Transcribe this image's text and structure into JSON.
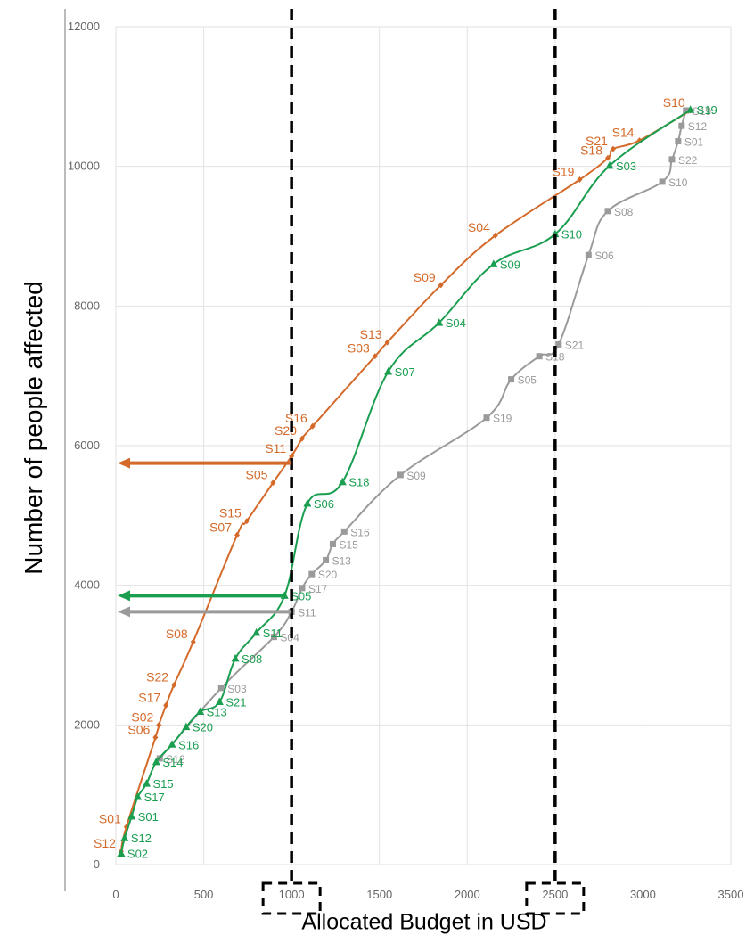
{
  "chart_data": {
    "type": "line",
    "xlabel": "Allocated Budget in USD",
    "ylabel": "Number of people affected",
    "xlim": [
      0,
      3500
    ],
    "ylim": [
      0,
      12000
    ],
    "xticks": [
      0,
      500,
      1000,
      1500,
      2000,
      2500,
      3000,
      3500
    ],
    "yticks": [
      0,
      2000,
      4000,
      6000,
      8000,
      10000,
      12000
    ],
    "grid": true,
    "colors": {
      "orange": "#d46a2a",
      "green": "#1a9e50",
      "gray": "#9a9a9a",
      "dashed": "#000000"
    },
    "series": [
      {
        "color": "orange",
        "marker": "diamond",
        "points": [
          {
            "x": 30,
            "y": 190,
            "label": "S12"
          },
          {
            "x": 60,
            "y": 540,
            "label": "S01"
          },
          {
            "x": 225,
            "y": 1820,
            "label": "S06"
          },
          {
            "x": 245,
            "y": 2000,
            "label": "S02"
          },
          {
            "x": 285,
            "y": 2280,
            "label": "S17"
          },
          {
            "x": 330,
            "y": 2570,
            "label": "S22"
          },
          {
            "x": 440,
            "y": 3190,
            "label": "S08"
          },
          {
            "x": 690,
            "y": 4720,
            "label": "S07"
          },
          {
            "x": 745,
            "y": 4920,
            "label": "S15"
          },
          {
            "x": 895,
            "y": 5470,
            "label": "S05"
          },
          {
            "x": 1000,
            "y": 5850,
            "label": "S11"
          },
          {
            "x": 1060,
            "y": 6100,
            "label": "S20"
          },
          {
            "x": 1120,
            "y": 6280,
            "label": "S16"
          },
          {
            "x": 1475,
            "y": 7280,
            "label": "S03"
          },
          {
            "x": 1545,
            "y": 7480,
            "label": "S13"
          },
          {
            "x": 1850,
            "y": 8300,
            "label": "S09"
          },
          {
            "x": 2160,
            "y": 9010,
            "label": "S04"
          },
          {
            "x": 2640,
            "y": 9810,
            "label": "S19"
          },
          {
            "x": 2800,
            "y": 10120,
            "label": "S18"
          },
          {
            "x": 2830,
            "y": 10250,
            "label": "S21"
          },
          {
            "x": 2980,
            "y": 10370,
            "label": "S14"
          },
          {
            "x": 3270,
            "y": 10800,
            "label": "S10"
          }
        ]
      },
      {
        "color": "green",
        "marker": "triangle",
        "points": [
          {
            "x": 30,
            "y": 160,
            "label": "S02"
          },
          {
            "x": 50,
            "y": 380,
            "label": "S12"
          },
          {
            "x": 90,
            "y": 690,
            "label": "S01"
          },
          {
            "x": 125,
            "y": 970,
            "label": "S17"
          },
          {
            "x": 175,
            "y": 1160,
            "label": "S15"
          },
          {
            "x": 230,
            "y": 1470,
            "label": "S14"
          },
          {
            "x": 320,
            "y": 1720,
            "label": "S16"
          },
          {
            "x": 400,
            "y": 1970,
            "label": "S20"
          },
          {
            "x": 480,
            "y": 2190,
            "label": "S13"
          },
          {
            "x": 590,
            "y": 2330,
            "label": "S21"
          },
          {
            "x": 680,
            "y": 2950,
            "label": "S08"
          },
          {
            "x": 800,
            "y": 3320,
            "label": "S11"
          },
          {
            "x": 960,
            "y": 3850,
            "label": "S05"
          },
          {
            "x": 1090,
            "y": 5170,
            "label": "S06"
          },
          {
            "x": 1290,
            "y": 5480,
            "label": "S18"
          },
          {
            "x": 1550,
            "y": 7060,
            "label": "S07"
          },
          {
            "x": 1840,
            "y": 7760,
            "label": "S04"
          },
          {
            "x": 2150,
            "y": 8600,
            "label": "S09"
          },
          {
            "x": 2500,
            "y": 9030,
            "label": "S10"
          },
          {
            "x": 2810,
            "y": 10010,
            "label": "S03"
          },
          {
            "x": 3270,
            "y": 10810,
            "label": "S19"
          }
        ]
      },
      {
        "color": "gray",
        "marker": "square",
        "points": [
          {
            "x": 250,
            "y": 1520,
            "label": "S12"
          },
          {
            "x": 600,
            "y": 2530,
            "label": "S03"
          },
          {
            "x": 900,
            "y": 3260,
            "label": "S04"
          },
          {
            "x": 1000,
            "y": 3620,
            "label": "S11"
          },
          {
            "x": 1060,
            "y": 3960,
            "label": "S17"
          },
          {
            "x": 1115,
            "y": 4160,
            "label": "S20"
          },
          {
            "x": 1195,
            "y": 4360,
            "label": "S13"
          },
          {
            "x": 1235,
            "y": 4590,
            "label": "S15"
          },
          {
            "x": 1300,
            "y": 4770,
            "label": "S16"
          },
          {
            "x": 1620,
            "y": 5580,
            "label": "S09"
          },
          {
            "x": 2110,
            "y": 6400,
            "label": "S19"
          },
          {
            "x": 2250,
            "y": 6950,
            "label": "S05"
          },
          {
            "x": 2410,
            "y": 7280,
            "label": "S18"
          },
          {
            "x": 2520,
            "y": 7450,
            "label": "S21"
          },
          {
            "x": 2690,
            "y": 8730,
            "label": "S06"
          },
          {
            "x": 2800,
            "y": 9360,
            "label": "S08"
          },
          {
            "x": 3110,
            "y": 9780,
            "label": "S10"
          },
          {
            "x": 3165,
            "y": 10100,
            "label": "S22"
          },
          {
            "x": 3200,
            "y": 10360,
            "label": "S01"
          },
          {
            "x": 3220,
            "y": 10580,
            "label": "S12"
          },
          {
            "x": 3245,
            "y": 10800,
            "label": "S19"
          }
        ]
      }
    ],
    "reference_lines": [
      {
        "x": 1000,
        "style": "dashed"
      },
      {
        "x": 2500,
        "style": "dashed"
      }
    ],
    "highlighted_ticks": [
      1000,
      2500
    ],
    "arrows": [
      {
        "color": "orange",
        "from_x": 1000,
        "y": 5750
      },
      {
        "color": "green",
        "from_x": 960,
        "y": 3850
      },
      {
        "color": "gray",
        "from_x": 1000,
        "y": 3620
      }
    ]
  }
}
